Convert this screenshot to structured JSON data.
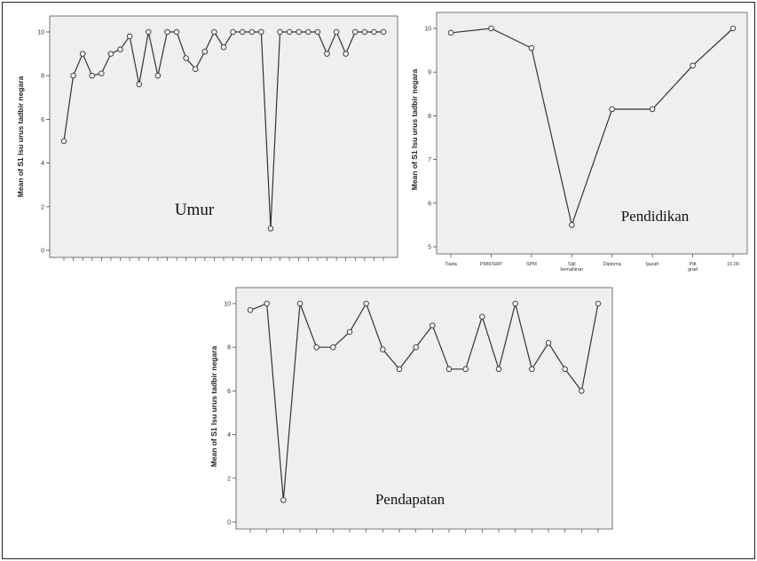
{
  "chart_data": [
    {
      "type": "line",
      "panel_label": "Umur",
      "ylabel": "Mean of S1 Isu urus tadbir negara",
      "ylim": [
        0,
        10
      ],
      "yticks": [
        0,
        2,
        4,
        6,
        8,
        10
      ],
      "categories": [
        "",
        "",
        "",
        "",
        "",
        "",
        "",
        "",
        "",
        "",
        "",
        "",
        "",
        "",
        "",
        "",
        "",
        "",
        "",
        "",
        "",
        "",
        "",
        "",
        "",
        "",
        "",
        "",
        "",
        "",
        "",
        "",
        "",
        "",
        ""
      ],
      "values": [
        5.0,
        8.0,
        9.0,
        8.0,
        8.1,
        9.0,
        9.2,
        9.8,
        7.6,
        10.0,
        8.0,
        10.0,
        10.0,
        8.8,
        8.3,
        9.1,
        10.0,
        9.3,
        10.0,
        10.0,
        10.0,
        10.0,
        1.0,
        10.0,
        10.0,
        10.0,
        10.0,
        10.0,
        9.0,
        10.0,
        9.0,
        10.0,
        10.0,
        10.0,
        10.0
      ],
      "grid": false,
      "legend": "none",
      "background": "#eef0ee",
      "line_color": "#333333"
    },
    {
      "type": "line",
      "panel_label": "Pendidikan",
      "ylabel": "Mean of S1 Isu urus tadbir negara",
      "ylim": [
        5,
        10
      ],
      "yticks": [
        5,
        6,
        7,
        8,
        9,
        10
      ],
      "categories": [
        "Tiada",
        "PMR/SRP",
        "SPM",
        "Sijil kemahiran",
        "Diploma",
        "Ijazah",
        "Pdt grad",
        "10.00"
      ],
      "values": [
        9.9,
        10.0,
        9.55,
        5.5,
        8.15,
        8.15,
        9.15,
        10.0
      ],
      "grid": false,
      "legend": "none",
      "background": "#eef0ee",
      "line_color": "#333333"
    },
    {
      "type": "line",
      "panel_label": "Pendapatan",
      "ylabel": "Mean of S1 Isu urus tadbir negara",
      "ylim": [
        0,
        10
      ],
      "yticks": [
        0,
        2,
        4,
        6,
        8,
        10
      ],
      "categories": [
        "",
        "",
        "",
        "",
        "",
        "",
        "",
        "",
        "",
        "",
        "",
        "",
        "",
        "",
        "",
        "",
        "",
        "",
        "",
        "",
        "",
        ""
      ],
      "values": [
        9.7,
        10.0,
        1.0,
        10.0,
        8.0,
        8.0,
        8.7,
        10.0,
        7.9,
        7.0,
        8.0,
        9.0,
        7.0,
        7.0,
        9.4,
        7.0,
        10.0,
        7.0,
        8.2,
        7.0,
        6.0,
        10.0
      ],
      "grid": false,
      "legend": "none",
      "background": "#eef0ee",
      "line_color": "#333333"
    }
  ]
}
